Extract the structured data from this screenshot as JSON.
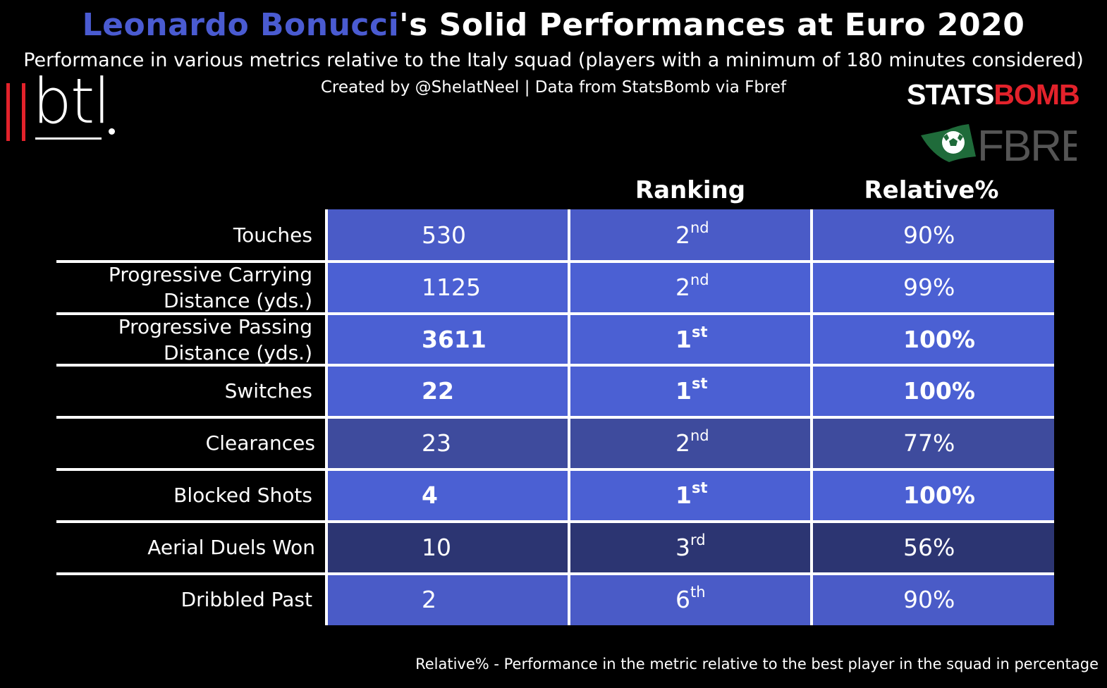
{
  "header": {
    "title_player": "Leonardo Bonucci",
    "title_rest": "'s Solid Performances at Euro 2020",
    "subtitle": "Performance in various metrics relative to the Italy squad (players with a minimum of 180 minutes considered)",
    "credit": "Created by @ShelatNeel | Data from StatsBomb via Fbref"
  },
  "logos": {
    "btl": "btl",
    "statsbomb_part1": "STATS",
    "statsbomb_part2": "BOMB",
    "fbref": "FBREF"
  },
  "colors": {
    "background": "#000000",
    "highlight": "#4a5bd1",
    "accent_red": "#e3222b",
    "fbref_green": "#1f6b3a"
  },
  "chart_data": {
    "type": "table",
    "columns": [
      "",
      "Ranking",
      "Relative%"
    ],
    "rows": [
      {
        "metric": "Touches",
        "value": "530",
        "rank_num": "2",
        "rank_suffix": "nd",
        "relative": "90%",
        "best": false,
        "relative_value": 90
      },
      {
        "metric": "Progressive Carrying Distance (yds.)",
        "metric_lines": [
          "Progressive Carrying",
          "Distance (yds.)"
        ],
        "value": "1125",
        "rank_num": "2",
        "rank_suffix": "nd",
        "relative": "99%",
        "best": false,
        "relative_value": 99
      },
      {
        "metric": "Progressive Passing Distance (yds.)",
        "metric_lines": [
          "Progressive Passing",
          "Distance (yds.)"
        ],
        "value": "3611",
        "rank_num": "1",
        "rank_suffix": "st",
        "relative": "100%",
        "best": true,
        "relative_value": 100
      },
      {
        "metric": "Switches",
        "value": "22",
        "rank_num": "1",
        "rank_suffix": "st",
        "relative": "100%",
        "best": true,
        "relative_value": 100
      },
      {
        "metric": "Clearances",
        "value": "23",
        "rank_num": "2",
        "rank_suffix": "nd",
        "relative": "77%",
        "best": false,
        "relative_value": 77
      },
      {
        "metric": "Blocked Shots",
        "value": "4",
        "rank_num": "1",
        "rank_suffix": "st",
        "relative": "100%",
        "best": true,
        "relative_value": 100
      },
      {
        "metric": "Aerial Duels Won",
        "value": "10",
        "rank_num": "3",
        "rank_suffix": "rd",
        "relative": "56%",
        "best": false,
        "relative_value": 56
      },
      {
        "metric": "Dribbled Past",
        "value": "2",
        "rank_num": "6",
        "rank_suffix": "th",
        "relative": "90%",
        "best": false,
        "relative_value": 90
      }
    ],
    "footnote": "Relative% - Performance in the metric relative to the best player in the squad in percentage"
  }
}
